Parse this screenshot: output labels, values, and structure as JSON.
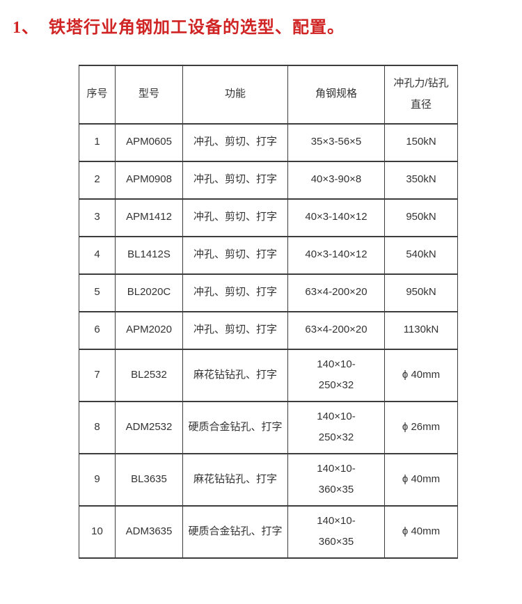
{
  "title": {
    "number": "1、",
    "text": "铁塔行业角钢加工设备的选型、配置。",
    "color": "#d02424"
  },
  "table": {
    "headers": [
      "序号",
      "型号",
      "功能",
      "角钢规格",
      "冲孔力/钻孔\n直径"
    ],
    "rows": [
      {
        "no": "1",
        "model": "APM0605",
        "func": "冲孔、剪切、打字",
        "spec": "35×3-56×5",
        "force": "150kN"
      },
      {
        "no": "2",
        "model": "APM0908",
        "func": "冲孔、剪切、打字",
        "spec": "40×3-90×8",
        "force": "350kN"
      },
      {
        "no": "3",
        "model": "APM1412",
        "func": "冲孔、剪切、打字",
        "spec": "40×3-140×12",
        "force": "950kN"
      },
      {
        "no": "4",
        "model": "BL1412S",
        "func": "冲孔、剪切、打字",
        "spec": "40×3-140×12",
        "force": "540kN"
      },
      {
        "no": "5",
        "model": "BL2020C",
        "func": "冲孔、剪切、打字",
        "spec": "63×4-200×20",
        "force": "950kN"
      },
      {
        "no": "6",
        "model": "APM2020",
        "func": "冲孔、剪切、打字",
        "spec": "63×4-200×20",
        "force": "1130kN"
      },
      {
        "no": "7",
        "model": "BL2532",
        "func": "麻花钻钻孔、打字",
        "spec": "140×10-\n250×32",
        "force": "ϕ 40mm"
      },
      {
        "no": "8",
        "model": "ADM2532",
        "func": "硬质合金钻孔、打字",
        "spec": "140×10-\n250×32",
        "force": "ϕ 26mm"
      },
      {
        "no": "9",
        "model": "BL3635",
        "func": "麻花钻钻孔、打字",
        "spec": "140×10-\n360×35",
        "force": "ϕ 40mm"
      },
      {
        "no": "10",
        "model": "ADM3635",
        "func": "硬质合金钻孔、打字",
        "spec": "140×10-\n360×35",
        "force": "ϕ 40mm"
      }
    ]
  }
}
